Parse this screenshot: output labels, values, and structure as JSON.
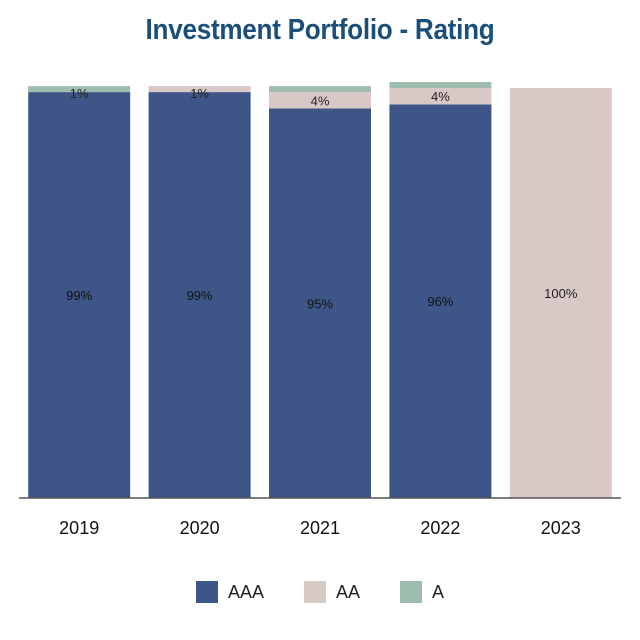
{
  "title": "Investment Portfolio - Rating",
  "chart_data": {
    "type": "bar",
    "stacked": true,
    "categories": [
      "2019",
      "2020",
      "2021",
      "2022",
      "2023"
    ],
    "series": [
      {
        "name": "AAA",
        "color": "#3d5687",
        "values": [
          99,
          99,
          95,
          96,
          0
        ],
        "labels": [
          "99%",
          "99%",
          "95%",
          "96%",
          ""
        ]
      },
      {
        "name": "AA",
        "color": "#d8c9c6",
        "values": [
          0,
          1,
          4,
          4,
          100
        ],
        "labels": [
          "",
          "1%",
          "4%",
          "4%",
          "100%"
        ]
      },
      {
        "name": "A",
        "color": "#9fbdaf",
        "values": [
          1,
          0,
          1,
          1,
          0
        ],
        "labels": [
          "1%",
          "",
          "",
          "",
          ""
        ]
      }
    ],
    "ylim": [
      0,
      100
    ],
    "legend_position": "bottom",
    "grid": false
  }
}
